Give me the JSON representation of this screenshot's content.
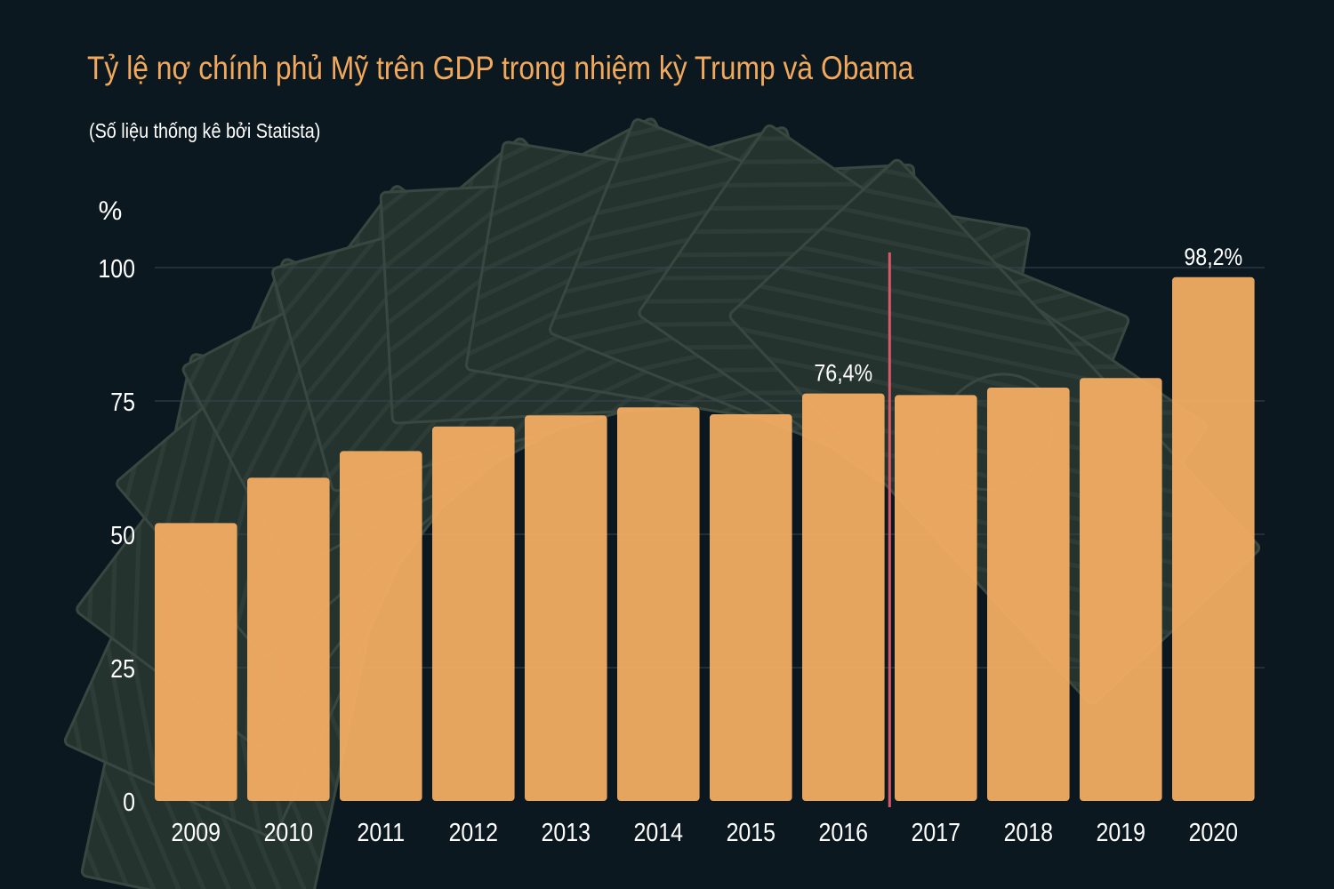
{
  "chart_data": {
    "type": "bar",
    "title": "Tỷ lệ nợ chính phủ Mỹ trên GDP trong nhiệm kỳ Trump và Obama",
    "subtitle": "(Số liệu thống kê bởi Statista)",
    "ylabel": "%",
    "xlabel": "",
    "ylim": [
      0,
      100
    ],
    "yticks": [
      0,
      25,
      50,
      75,
      100
    ],
    "grid": true,
    "categories": [
      "2009",
      "2010",
      "2011",
      "2012",
      "2013",
      "2014",
      "2015",
      "2016",
      "2017",
      "2018",
      "2019",
      "2020"
    ],
    "values": [
      52.1,
      60.6,
      65.6,
      70.2,
      72.3,
      73.8,
      72.5,
      76.4,
      76.1,
      77.5,
      79.3,
      98.2
    ],
    "data_labels": [
      {
        "index": 7,
        "text": "76,4%"
      },
      {
        "index": 11,
        "text": "98,2%"
      }
    ],
    "divider_after_index": 7,
    "colors": {
      "bar": "#f2ad63",
      "divider": "#d75a6a",
      "title": "#f2a95c",
      "text": "#ffffff",
      "background": "#0c1820",
      "grid": "#3a4650"
    }
  }
}
